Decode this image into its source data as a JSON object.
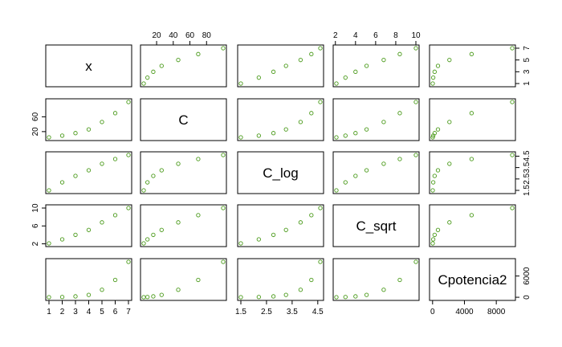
{
  "chart_data": {
    "type": "scatter",
    "layout": "scatterplot-matrix",
    "point_color": "#4a9a1a",
    "grid": false,
    "variables": [
      {
        "name": "x",
        "lim": [
          1,
          7
        ],
        "ticks": [
          1,
          2,
          3,
          4,
          5,
          6,
          7
        ],
        "tick_labels": [
          "1",
          "2",
          "3",
          "4",
          "5",
          "6",
          "7"
        ],
        "right_ticks": [
          1,
          3,
          5,
          7
        ],
        "right_tick_labels": [
          "1",
          "3",
          "5",
          "7"
        ],
        "values": [
          1,
          2,
          3,
          4,
          5,
          6,
          7
        ]
      },
      {
        "name": "C",
        "lim": [
          4.5,
          100
        ],
        "ticks": [
          20,
          40,
          60,
          80
        ],
        "tick_labels": [
          "20",
          "40",
          "60",
          "80"
        ],
        "left_ticks": [
          20,
          60
        ],
        "left_tick_labels": [
          "20",
          "60"
        ],
        "values": [
          4.5,
          9,
          16,
          26,
          46,
          70,
          100
        ]
      },
      {
        "name": "C_log",
        "lim": [
          1.5,
          4.6
        ],
        "ticks": [
          1.5,
          2.5,
          3.5,
          4.5
        ],
        "tick_labels": [
          "1.5",
          "2.5",
          "3.5",
          "4.5"
        ],
        "right_ticks": [
          1.5,
          2.5,
          3.5,
          4.5
        ],
        "right_tick_labels": [
          "1.5",
          "2.5",
          "3.5",
          "4.5"
        ],
        "values": [
          1.5,
          2.2,
          2.77,
          3.26,
          3.83,
          4.25,
          4.6
        ]
      },
      {
        "name": "C_sqrt",
        "lim": [
          2.1,
          10
        ],
        "ticks": [
          2,
          4,
          6,
          8,
          10
        ],
        "tick_labels": [
          "2",
          "4",
          "6",
          "8",
          "10"
        ],
        "left_ticks": [
          2,
          6,
          10
        ],
        "left_tick_labels": [
          "2",
          "6",
          "10"
        ],
        "values": [
          2.1,
          3.0,
          4.0,
          5.1,
          6.8,
          8.4,
          10
        ]
      },
      {
        "name": "Cpotencia2",
        "lim": [
          20,
          10000
        ],
        "ticks": [
          0,
          4000,
          8000
        ],
        "tick_labels": [
          "0",
          "4000",
          "8000"
        ],
        "right_ticks": [
          0,
          6000
        ],
        "right_tick_labels": [
          "0",
          "6000"
        ],
        "values": [
          20,
          81,
          256,
          676,
          2116,
          4900,
          10000
        ]
      }
    ]
  }
}
